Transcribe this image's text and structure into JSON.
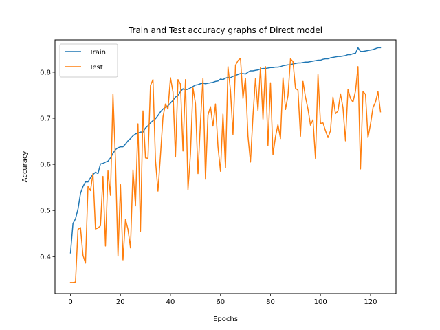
{
  "chart_data": {
    "type": "line",
    "title": "Train and Test accuracy graphs of Direct model",
    "xlabel": "Epochs",
    "ylabel": "Accuracy",
    "xlim": [
      -6.2,
      130.2
    ],
    "ylim": [
      0.32,
      0.87
    ],
    "xticks": [
      0,
      20,
      40,
      60,
      80,
      100,
      120
    ],
    "yticks": [
      0.4,
      0.5,
      0.6,
      0.7,
      0.8
    ],
    "ytick_labels": [
      "0.4",
      "0.5",
      "0.6",
      "0.7",
      "0.8"
    ],
    "grid": false,
    "legend_position": "upper-left",
    "series": [
      {
        "name": "Train",
        "color": "#1f77b4",
        "values": [
          0.408,
          0.472,
          0.482,
          0.503,
          0.537,
          0.552,
          0.562,
          0.562,
          0.571,
          0.578,
          0.583,
          0.58,
          0.601,
          0.602,
          0.605,
          0.607,
          0.614,
          0.624,
          0.632,
          0.636,
          0.638,
          0.638,
          0.644,
          0.651,
          0.656,
          0.662,
          0.666,
          0.668,
          0.67,
          0.67,
          0.679,
          0.684,
          0.69,
          0.695,
          0.699,
          0.706,
          0.714,
          0.72,
          0.724,
          0.727,
          0.733,
          0.739,
          0.746,
          0.75,
          0.758,
          0.764,
          0.762,
          0.763,
          0.766,
          0.769,
          0.772,
          0.773,
          0.775,
          0.776,
          0.775,
          0.776,
          0.777,
          0.778,
          0.78,
          0.781,
          0.785,
          0.784,
          0.787,
          0.789,
          0.788,
          0.791,
          0.793,
          0.795,
          0.797,
          0.797,
          0.796,
          0.8,
          0.803,
          0.803,
          0.804,
          0.805,
          0.807,
          0.808,
          0.808,
          0.809,
          0.81,
          0.81,
          0.811,
          0.811,
          0.812,
          0.814,
          0.815,
          0.816,
          0.816,
          0.818,
          0.819,
          0.82,
          0.82,
          0.821,
          0.822,
          0.822,
          0.823,
          0.824,
          0.825,
          0.826,
          0.826,
          0.828,
          0.829,
          0.829,
          0.831,
          0.832,
          0.833,
          0.834,
          0.834,
          0.835,
          0.836,
          0.838,
          0.838,
          0.84,
          0.841,
          0.853,
          0.845,
          0.845,
          0.846,
          0.847,
          0.848,
          0.849,
          0.851,
          0.853,
          0.853
        ]
      },
      {
        "name": "Test",
        "color": "#ff7f0e",
        "values": [
          0.344,
          0.344,
          0.345,
          0.459,
          0.463,
          0.403,
          0.386,
          0.552,
          0.543,
          0.58,
          0.46,
          0.462,
          0.467,
          0.574,
          0.423,
          0.586,
          0.533,
          0.752,
          0.609,
          0.401,
          0.556,
          0.393,
          0.481,
          0.459,
          0.419,
          0.588,
          0.51,
          0.688,
          0.455,
          0.716,
          0.614,
          0.613,
          0.771,
          0.784,
          0.609,
          0.542,
          0.62,
          0.703,
          0.731,
          0.72,
          0.788,
          0.757,
          0.616,
          0.784,
          0.774,
          0.629,
          0.784,
          0.545,
          0.623,
          0.766,
          0.732,
          0.58,
          0.692,
          0.787,
          0.568,
          0.707,
          0.725,
          0.683,
          0.731,
          0.638,
          0.585,
          0.709,
          0.593,
          0.812,
          0.76,
          0.665,
          0.815,
          0.825,
          0.83,
          0.743,
          0.787,
          0.661,
          0.605,
          0.705,
          0.787,
          0.717,
          0.81,
          0.698,
          0.812,
          0.641,
          0.777,
          0.621,
          0.66,
          0.686,
          0.656,
          0.788,
          0.719,
          0.749,
          0.829,
          0.823,
          0.765,
          0.761,
          0.661,
          0.78,
          0.746,
          0.72,
          0.685,
          0.697,
          0.613,
          0.795,
          0.689,
          0.69,
          0.673,
          0.658,
          0.673,
          0.746,
          0.71,
          0.716,
          0.753,
          0.723,
          0.651,
          0.763,
          0.743,
          0.735,
          0.759,
          0.812,
          0.59,
          0.758,
          0.752,
          0.658,
          0.687,
          0.723,
          0.735,
          0.758,
          0.714
        ]
      }
    ]
  }
}
